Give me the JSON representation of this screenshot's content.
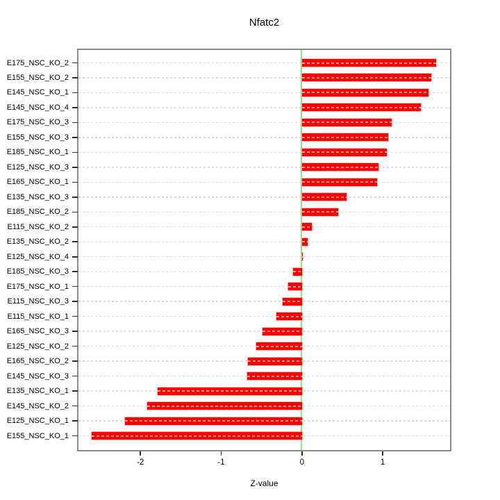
{
  "chart_data": {
    "type": "bar",
    "orientation": "horizontal",
    "title": "Nfatc2",
    "xlabel": "Z-value",
    "categories": [
      "E175_NSC_KO_2",
      "E155_NSC_KO_2",
      "E145_NSC_KO_1",
      "E145_NSC_KO_4",
      "E175_NSC_KO_3",
      "E155_NSC_KO_3",
      "E185_NSC_KO_1",
      "E125_NSC_KO_3",
      "E165_NSC_KO_1",
      "E135_NSC_KO_3",
      "E185_NSC_KO_2",
      "E115_NSC_KO_2",
      "E135_NSC_KO_2",
      "E125_NSC_KO_4",
      "E185_NSC_KO_3",
      "E175_NSC_KO_1",
      "E115_NSC_KO_3",
      "E115_NSC_KO_1",
      "E165_NSC_KO_3",
      "E125_NSC_KO_2",
      "E165_NSC_KO_2",
      "E145_NSC_KO_3",
      "E135_NSC_KO_1",
      "E145_NSC_KO_2",
      "E125_NSC_KO_1",
      "E155_NSC_KO_1"
    ],
    "values": [
      1.66,
      1.6,
      1.57,
      1.47,
      1.11,
      1.07,
      1.05,
      0.95,
      0.93,
      0.55,
      0.45,
      0.12,
      0.07,
      0.01,
      -0.11,
      -0.17,
      -0.24,
      -0.32,
      -0.49,
      -0.57,
      -0.67,
      -0.68,
      -1.79,
      -1.92,
      -2.19,
      -2.6
    ],
    "x_ticks": [
      -2,
      -1,
      0,
      1
    ],
    "x_tick_labels": [
      "-2",
      "-1",
      "0",
      "1"
    ],
    "xlim": [
      -2.767,
      1.833
    ],
    "grid": true,
    "legend": null,
    "bar_color": "#ff0000",
    "zero_line_color": "#82ee82",
    "grid_color": "#dcdcdc",
    "box_color": "#8c8c8c"
  }
}
